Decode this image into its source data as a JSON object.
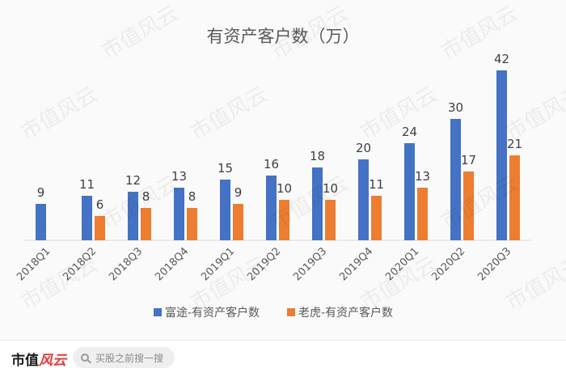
{
  "chart_data": {
    "type": "bar",
    "title": "有资产客户数（万）",
    "categories": [
      "2018Q1",
      "2018Q2",
      "2018Q3",
      "2018Q4",
      "2019Q1",
      "2019Q2",
      "2019Q3",
      "2019Q4",
      "2020Q1",
      "2020Q2",
      "2020Q3"
    ],
    "series": [
      {
        "name": "富途-有资产客户数",
        "color": "#4472c4",
        "values": [
          9,
          11,
          12,
          13,
          15,
          16,
          18,
          20,
          24,
          30,
          42
        ]
      },
      {
        "name": "老虎-有资产客户数",
        "color": "#ed7d31",
        "values": [
          null,
          6,
          8,
          8,
          9,
          10,
          10,
          11,
          13,
          17,
          21
        ]
      }
    ],
    "ylim": [
      0,
      45
    ],
    "grid": false,
    "legend_position": "bottom"
  },
  "watermark": {
    "text": "市值风云"
  },
  "footer": {
    "brand_main": "市值",
    "brand_accent": "风云",
    "search_placeholder": "买股之前搜一搜"
  }
}
